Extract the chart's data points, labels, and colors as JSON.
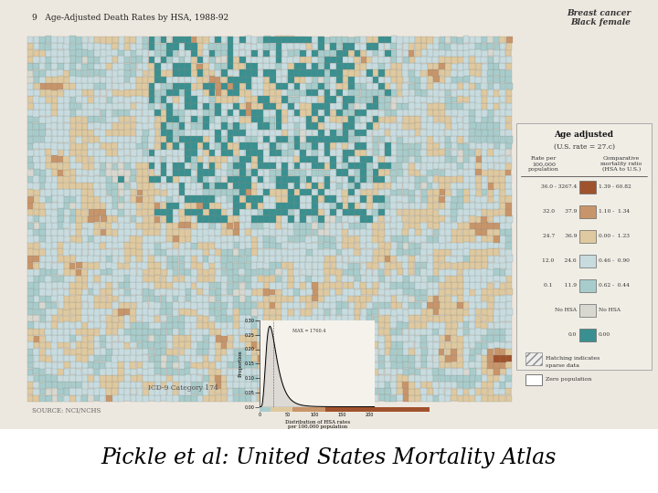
{
  "title": "Pickle et al: United States Mortality Atlas",
  "map_title": "9   Age-Adjusted Death Rates by HSA, 1988-92",
  "map_subtitle_right1": "Breast cancer",
  "map_subtitle_right2": "Black female",
  "legend_title": "Age adjusted",
  "legend_us_rate": "(U.S. rate = 27.c)",
  "legend_col1": "Rate per\n100,000\npopulation",
  "legend_col2": "Comparative\nmortality ratio\n(HSA to U.S.)",
  "legend_rows": [
    {
      "rate": "36.0 - 3267.4",
      "cmr": "1.39 - 60.82",
      "color": "#A0522D"
    },
    {
      "rate": "32.0      37.9",
      "cmr": "1.10 -  1.34",
      "color": "#C8956A"
    },
    {
      "rate": "24.7      36.9",
      "cmr": "0.00 -  1.23",
      "color": "#DFC9A0"
    },
    {
      "rate": "12.0      24.6",
      "cmr": "0.46 -  0.90",
      "color": "#C8DCE0"
    },
    {
      "rate": "0.1       11.9",
      "cmr": "0.62 -  0.44",
      "color": "#A8CCCC"
    },
    {
      "rate": "No HSA",
      "cmr": "No HSA",
      "color": "#D8D8D0"
    },
    {
      "rate": "0.0",
      "cmr": "0.00",
      "color": "#3A9090"
    }
  ],
  "hatching_label1": "Hatching indicates",
  "hatching_label2": "sparse data",
  "zero_pop_label": "Zero population",
  "icd_label": "ICD-9 Category 174",
  "source_label": "SOURCE: NCI/NCHS",
  "dist_xlabel1": "Distribution of HSA rates",
  "dist_xlabel2": "per 100,000 population",
  "dist_ylabel": "Proportion",
  "page_bg": "#EDE8DF",
  "figure_bg": "#FFFFFF",
  "map_bg": "#EDE8DF",
  "title_fontsize": 17,
  "title_fontstyle": "italic",
  "title_fontfamily": "serif"
}
